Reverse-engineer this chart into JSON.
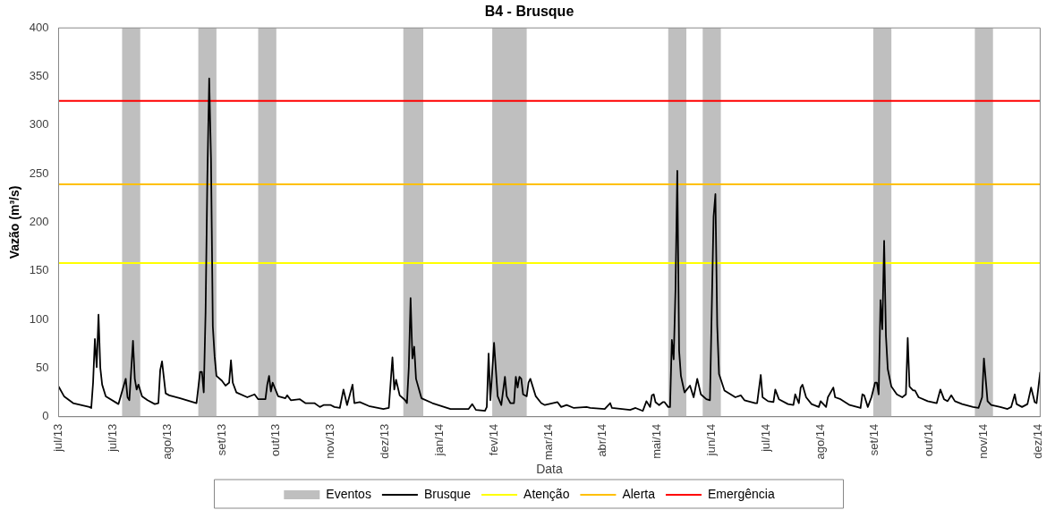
{
  "chart_data": {
    "type": "line",
    "title": "B4 - Brusque",
    "xlabel": "Data",
    "ylabel": "Vazão (m³/s)",
    "x": [
      "2013-07-01",
      "2013-07-04",
      "2013-07-09",
      "2013-07-18",
      "2013-07-19",
      "2013-07-20",
      "2013-07-21",
      "2013-07-22",
      "2013-07-23",
      "2013-07-24",
      "2013-07-25",
      "2013-07-27",
      "2013-08-03",
      "2013-08-07",
      "2013-08-08",
      "2013-08-09",
      "2013-08-11",
      "2013-08-12",
      "2013-08-13",
      "2013-08-14",
      "2013-08-16",
      "2013-08-19",
      "2013-08-23",
      "2013-08-25",
      "2013-08-26",
      "2013-08-27",
      "2013-08-29",
      "2013-08-31",
      "2013-09-06",
      "2013-09-15",
      "2013-09-17",
      "2013-09-18",
      "2013-09-19",
      "2013-09-20",
      "2013-09-21",
      "2013-09-22",
      "2013-09-23",
      "2013-09-24",
      "2013-09-25",
      "2013-09-26",
      "2013-09-29",
      "2013-10-01",
      "2013-10-03",
      "2013-10-04",
      "2013-10-05",
      "2013-10-07",
      "2013-10-13",
      "2013-10-17",
      "2013-10-19",
      "2013-10-23",
      "2013-10-24",
      "2013-10-25",
      "2013-10-26",
      "2013-10-27",
      "2013-10-30",
      "2013-11-03",
      "2013-11-04",
      "2013-11-06",
      "2013-11-11",
      "2013-11-14",
      "2013-11-19",
      "2013-11-22",
      "2013-11-24",
      "2013-11-28",
      "2013-11-30",
      "2013-12-03",
      "2013-12-05",
      "2013-12-07",
      "2013-12-10",
      "2013-12-11",
      "2013-12-14",
      "2013-12-19",
      "2013-12-27",
      "2013-12-30",
      "2014-01-01",
      "2014-01-02",
      "2014-01-03",
      "2014-01-05",
      "2014-01-08",
      "2014-01-09",
      "2014-01-10",
      "2014-01-11",
      "2014-01-12",
      "2014-01-13",
      "2014-01-14",
      "2014-01-17",
      "2014-01-23",
      "2014-02-02",
      "2014-02-12",
      "2014-02-14",
      "2014-02-16",
      "2014-02-21",
      "2014-02-22",
      "2014-02-23",
      "2014-02-24",
      "2014-02-26",
      "2014-02-28",
      "2014-03-02",
      "2014-03-04",
      "2014-03-05",
      "2014-03-07",
      "2014-03-09",
      "2014-03-10",
      "2014-03-11",
      "2014-03-12",
      "2014-03-13",
      "2014-03-14",
      "2014-03-16",
      "2014-03-17",
      "2014-03-18",
      "2014-03-21",
      "2014-03-24",
      "2014-03-26",
      "2014-04-02",
      "2014-04-04",
      "2014-04-07",
      "2014-04-11",
      "2014-04-18",
      "2014-04-20",
      "2014-04-28",
      "2014-05-01",
      "2014-05-02",
      "2014-05-12",
      "2014-05-15",
      "2014-05-19",
      "2014-05-21",
      "2014-05-23",
      "2014-05-24",
      "2014-05-25",
      "2014-05-26",
      "2014-05-28",
      "2014-05-30",
      "2014-05-31",
      "2014-06-02",
      "2014-06-03",
      "2014-06-04",
      "2014-06-05",
      "2014-06-06",
      "2014-06-07",
      "2014-06-08",
      "2014-06-09",
      "2014-06-11",
      "2014-06-14",
      "2014-06-16",
      "2014-06-18",
      "2014-06-20",
      "2014-06-23",
      "2014-06-25",
      "2014-06-27",
      "2014-06-28",
      "2014-06-29",
      "2014-06-30",
      "2014-07-03",
      "2014-07-09",
      "2014-07-12",
      "2014-07-14",
      "2014-07-20",
      "2014-07-21",
      "2014-07-23",
      "2014-07-24",
      "2014-07-27",
      "2014-07-30",
      "2014-07-31",
      "2014-08-02",
      "2014-08-07",
      "2014-08-10",
      "2014-08-11",
      "2014-08-13",
      "2014-08-14",
      "2014-08-15",
      "2014-08-17",
      "2014-08-20",
      "2014-08-24",
      "2014-08-25",
      "2014-08-28",
      "2014-08-29",
      "2014-09-01",
      "2014-09-02",
      "2014-09-05",
      "2014-09-10",
      "2014-09-16",
      "2014-09-17",
      "2014-09-18",
      "2014-09-20",
      "2014-09-22",
      "2014-09-24",
      "2014-09-25",
      "2014-09-26",
      "2014-09-27",
      "2014-09-28",
      "2014-09-29",
      "2014-09-30",
      "2014-10-01",
      "2014-10-03",
      "2014-10-06",
      "2014-10-09",
      "2014-10-11",
      "2014-10-12",
      "2014-10-13",
      "2014-10-15",
      "2014-10-16",
      "2014-10-18",
      "2014-10-23",
      "2014-10-28",
      "2014-10-30",
      "2014-11-01",
      "2014-11-03",
      "2014-11-05",
      "2014-11-07",
      "2014-11-11",
      "2014-11-17",
      "2014-11-20",
      "2014-11-22",
      "2014-11-23",
      "2014-11-25",
      "2014-11-27",
      "2014-12-02",
      "2014-12-06",
      "2014-12-08",
      "2014-12-10",
      "2014-12-11",
      "2014-12-14",
      "2014-12-17",
      "2014-12-19",
      "2014-12-21",
      "2014-12-22",
      "2014-12-24"
    ],
    "series": [
      {
        "name": "Brusque",
        "color": "#000000",
        "values": [
          31,
          21,
          14,
          10,
          9,
          35,
          80,
          51,
          105,
          50,
          33,
          21,
          13,
          39,
          20,
          17,
          78,
          39,
          28,
          33,
          21,
          17,
          13,
          14,
          48,
          57,
          24,
          22,
          19,
          14,
          46,
          46,
          25,
          107,
          248,
          348,
          266,
          93,
          62,
          42,
          37,
          32,
          35,
          58,
          35,
          25,
          20,
          23,
          18,
          18,
          33,
          42,
          26,
          35,
          21,
          19,
          22,
          17,
          18,
          14,
          14,
          10,
          12,
          12,
          10,
          9,
          28,
          12,
          33,
          14,
          15,
          11,
          8,
          9,
          61,
          28,
          38,
          22,
          17,
          14,
          50,
          122,
          60,
          72,
          39,
          19,
          14,
          8,
          8,
          13,
          7,
          6,
          10,
          65,
          17,
          76,
          21,
          12,
          41,
          21,
          14,
          14,
          41,
          30,
          41,
          39,
          23,
          21,
          35,
          39,
          21,
          14,
          12,
          15,
          10,
          12,
          9,
          10,
          9,
          8,
          14,
          9,
          7,
          9,
          6,
          16,
          10,
          22,
          23,
          15,
          12,
          15,
          15,
          10,
          10,
          79,
          59,
          131,
          253,
          68,
          42,
          25,
          32,
          20,
          39,
          23,
          18,
          17,
          206,
          229,
          94,
          44,
          27,
          20,
          22,
          17,
          14,
          14,
          43,
          20,
          16,
          15,
          28,
          18,
          13,
          12,
          23,
          14,
          30,
          33,
          20,
          13,
          10,
          16,
          10,
          20,
          30,
          20,
          18,
          12,
          9,
          23,
          22,
          10,
          20,
          35,
          35,
          23,
          120,
          90,
          181,
          83,
          49,
          31,
          23,
          20,
          23,
          81,
          31,
          27,
          27,
          20,
          16,
          14,
          28,
          18,
          16,
          22,
          16,
          13,
          10,
          9,
          20,
          60,
          16,
          12,
          10,
          8,
          10,
          23,
          13,
          10,
          13,
          30,
          15,
          14,
          46
        ]
      }
    ],
    "xlim": [
      "2013-07-01",
      "2014-12-24"
    ],
    "xticks": [
      {
        "value": "2013-07-01",
        "label": "jul/13"
      },
      {
        "value": "2013-07-31",
        "label": "jul/13"
      },
      {
        "value": "2013-08-30",
        "label": "ago/13"
      },
      {
        "value": "2013-09-29",
        "label": "set/13"
      },
      {
        "value": "2013-10-29",
        "label": "out/13"
      },
      {
        "value": "2013-11-28",
        "label": "nov/13"
      },
      {
        "value": "2013-12-28",
        "label": "dez/13"
      },
      {
        "value": "2014-01-27",
        "label": "jan/14"
      },
      {
        "value": "2014-02-26",
        "label": "fev/14"
      },
      {
        "value": "2014-03-28",
        "label": "mar/14"
      },
      {
        "value": "2014-04-27",
        "label": "abr/14"
      },
      {
        "value": "2014-05-27",
        "label": "mai/14"
      },
      {
        "value": "2014-06-26",
        "label": "jun/14"
      },
      {
        "value": "2014-07-26",
        "label": "jul/14"
      },
      {
        "value": "2014-08-25",
        "label": "ago/14"
      },
      {
        "value": "2014-09-24",
        "label": "set/14"
      },
      {
        "value": "2014-10-24",
        "label": "out/14"
      },
      {
        "value": "2014-11-23",
        "label": "nov/14"
      },
      {
        "value": "2014-12-23",
        "label": "dez/14"
      }
    ],
    "ylim": [
      0,
      400
    ],
    "yticks": [
      0,
      50,
      100,
      150,
      200,
      250,
      300,
      350,
      400
    ],
    "ref_lines": [
      {
        "axis": "y",
        "value": 158,
        "label": "Atenção",
        "color": "#ffff00"
      },
      {
        "axis": "y",
        "value": 239,
        "label": "Alerta",
        "color": "#ffc000"
      },
      {
        "axis": "y",
        "value": 325,
        "label": "Emergência",
        "color": "#ff0000"
      }
    ],
    "bands": [
      {
        "axis": "x",
        "from": "2013-08-05",
        "to": "2013-08-15",
        "label": "Eventos",
        "color": "#bfbfbf"
      },
      {
        "axis": "x",
        "from": "2013-09-16",
        "to": "2013-09-26",
        "color": "#bfbfbf"
      },
      {
        "axis": "x",
        "from": "2013-10-19",
        "to": "2013-10-29",
        "color": "#bfbfbf"
      },
      {
        "axis": "x",
        "from": "2014-01-07",
        "to": "2014-01-18",
        "color": "#bfbfbf"
      },
      {
        "axis": "x",
        "from": "2014-02-25",
        "to": "2014-03-16",
        "color": "#bfbfbf"
      },
      {
        "axis": "x",
        "from": "2014-06-02",
        "to": "2014-06-12",
        "color": "#bfbfbf"
      },
      {
        "axis": "x",
        "from": "2014-06-21",
        "to": "2014-07-01",
        "color": "#bfbfbf"
      },
      {
        "axis": "x",
        "from": "2014-09-23",
        "to": "2014-10-03",
        "color": "#bfbfbf"
      },
      {
        "axis": "x",
        "from": "2014-11-18",
        "to": "2014-11-28",
        "color": "#bfbfbf"
      }
    ],
    "legend": "bottom",
    "grid": false,
    "marker": "none",
    "line_style": "solid"
  }
}
